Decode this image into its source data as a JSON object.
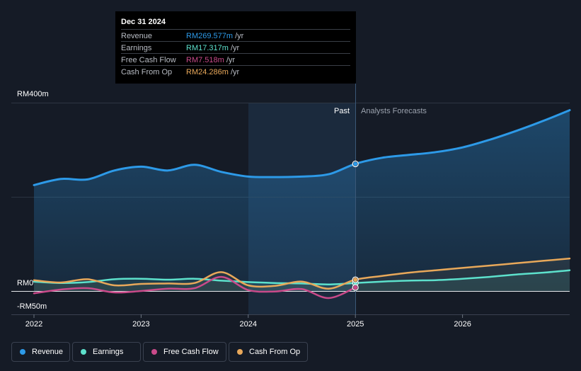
{
  "chart_data": {
    "type": "area",
    "title": "",
    "y_axis": {
      "labels": [
        "RM400m",
        "RM0",
        "-RM50m"
      ],
      "ylim": [
        -50,
        400
      ],
      "unit": "RM m"
    },
    "x_axis": {
      "labels": [
        "2022",
        "2023",
        "2024",
        "2025",
        "2026"
      ],
      "xlim": [
        2022,
        2027
      ]
    },
    "divider": {
      "x": 2025.0,
      "past_label": "Past",
      "forecast_label": "Analysts Forecasts"
    },
    "series": [
      {
        "name": "Revenue",
        "color": "#2d9ae8",
        "points": [
          [
            2022.0,
            225
          ],
          [
            2022.25,
            238
          ],
          [
            2022.5,
            237
          ],
          [
            2022.75,
            256
          ],
          [
            2023.0,
            264
          ],
          [
            2023.25,
            256
          ],
          [
            2023.5,
            268
          ],
          [
            2023.75,
            253
          ],
          [
            2024.0,
            243
          ],
          [
            2024.25,
            242
          ],
          [
            2024.5,
            243
          ],
          [
            2024.75,
            248
          ],
          [
            2025.0,
            270
          ],
          [
            2025.25,
            283
          ],
          [
            2025.5,
            289
          ],
          [
            2025.75,
            295
          ],
          [
            2026.0,
            305
          ],
          [
            2026.25,
            321
          ],
          [
            2026.5,
            340
          ],
          [
            2026.75,
            361
          ],
          [
            2027.0,
            384
          ]
        ]
      },
      {
        "name": "Earnings",
        "color": "#5de1cc",
        "points": [
          [
            2022.0,
            20
          ],
          [
            2022.25,
            17
          ],
          [
            2022.5,
            19
          ],
          [
            2022.75,
            25
          ],
          [
            2023.0,
            26
          ],
          [
            2023.25,
            24
          ],
          [
            2023.5,
            26
          ],
          [
            2023.75,
            22
          ],
          [
            2024.0,
            19
          ],
          [
            2024.25,
            17
          ],
          [
            2024.5,
            16
          ],
          [
            2024.75,
            14
          ],
          [
            2025.0,
            17
          ],
          [
            2025.25,
            20
          ],
          [
            2025.5,
            22
          ],
          [
            2025.75,
            23
          ],
          [
            2026.0,
            26
          ],
          [
            2026.25,
            30
          ],
          [
            2026.5,
            35
          ],
          [
            2026.75,
            39
          ],
          [
            2027.0,
            44
          ]
        ]
      },
      {
        "name": "Free Cash Flow",
        "color": "#c94a8a",
        "points": [
          [
            2022.0,
            -5
          ],
          [
            2022.25,
            3
          ],
          [
            2022.5,
            6
          ],
          [
            2022.75,
            -3
          ],
          [
            2023.0,
            0
          ],
          [
            2023.25,
            5
          ],
          [
            2023.5,
            6
          ],
          [
            2023.75,
            30
          ],
          [
            2024.0,
            2
          ],
          [
            2024.25,
            -1
          ],
          [
            2024.5,
            4
          ],
          [
            2024.75,
            -15
          ],
          [
            2025.0,
            7.5
          ]
        ]
      },
      {
        "name": "Cash From Op",
        "color": "#e8a85a",
        "points": [
          [
            2022.0,
            23
          ],
          [
            2022.25,
            18
          ],
          [
            2022.5,
            25
          ],
          [
            2022.75,
            12
          ],
          [
            2023.0,
            15
          ],
          [
            2023.25,
            16
          ],
          [
            2023.5,
            17
          ],
          [
            2023.75,
            40
          ],
          [
            2024.0,
            12
          ],
          [
            2024.25,
            11
          ],
          [
            2024.5,
            20
          ],
          [
            2024.75,
            5
          ],
          [
            2025.0,
            24
          ],
          [
            2025.25,
            32
          ],
          [
            2025.5,
            39
          ],
          [
            2025.75,
            44
          ],
          [
            2026.0,
            49
          ],
          [
            2026.25,
            54
          ],
          [
            2026.5,
            59
          ],
          [
            2026.75,
            64
          ],
          [
            2027.0,
            69
          ]
        ]
      }
    ],
    "tooltip": {
      "date": "Dec 31 2024",
      "rows": [
        {
          "label": "Revenue",
          "value": "RM269.577m",
          "unit": " /yr",
          "color": "#2d9ae8"
        },
        {
          "label": "Earnings",
          "value": "RM17.317m",
          "unit": " /yr",
          "color": "#5de1cc"
        },
        {
          "label": "Free Cash Flow",
          "value": "RM7.518m",
          "unit": " /yr",
          "color": "#c94a8a"
        },
        {
          "label": "Cash From Op",
          "value": "RM24.286m",
          "unit": " /yr",
          "color": "#e8a85a"
        }
      ]
    },
    "legend": [
      {
        "name": "Revenue",
        "color": "#2d9ae8"
      },
      {
        "name": "Earnings",
        "color": "#5de1cc"
      },
      {
        "name": "Free Cash Flow",
        "color": "#c94a8a"
      },
      {
        "name": "Cash From Op",
        "color": "#e8a85a"
      }
    ]
  }
}
